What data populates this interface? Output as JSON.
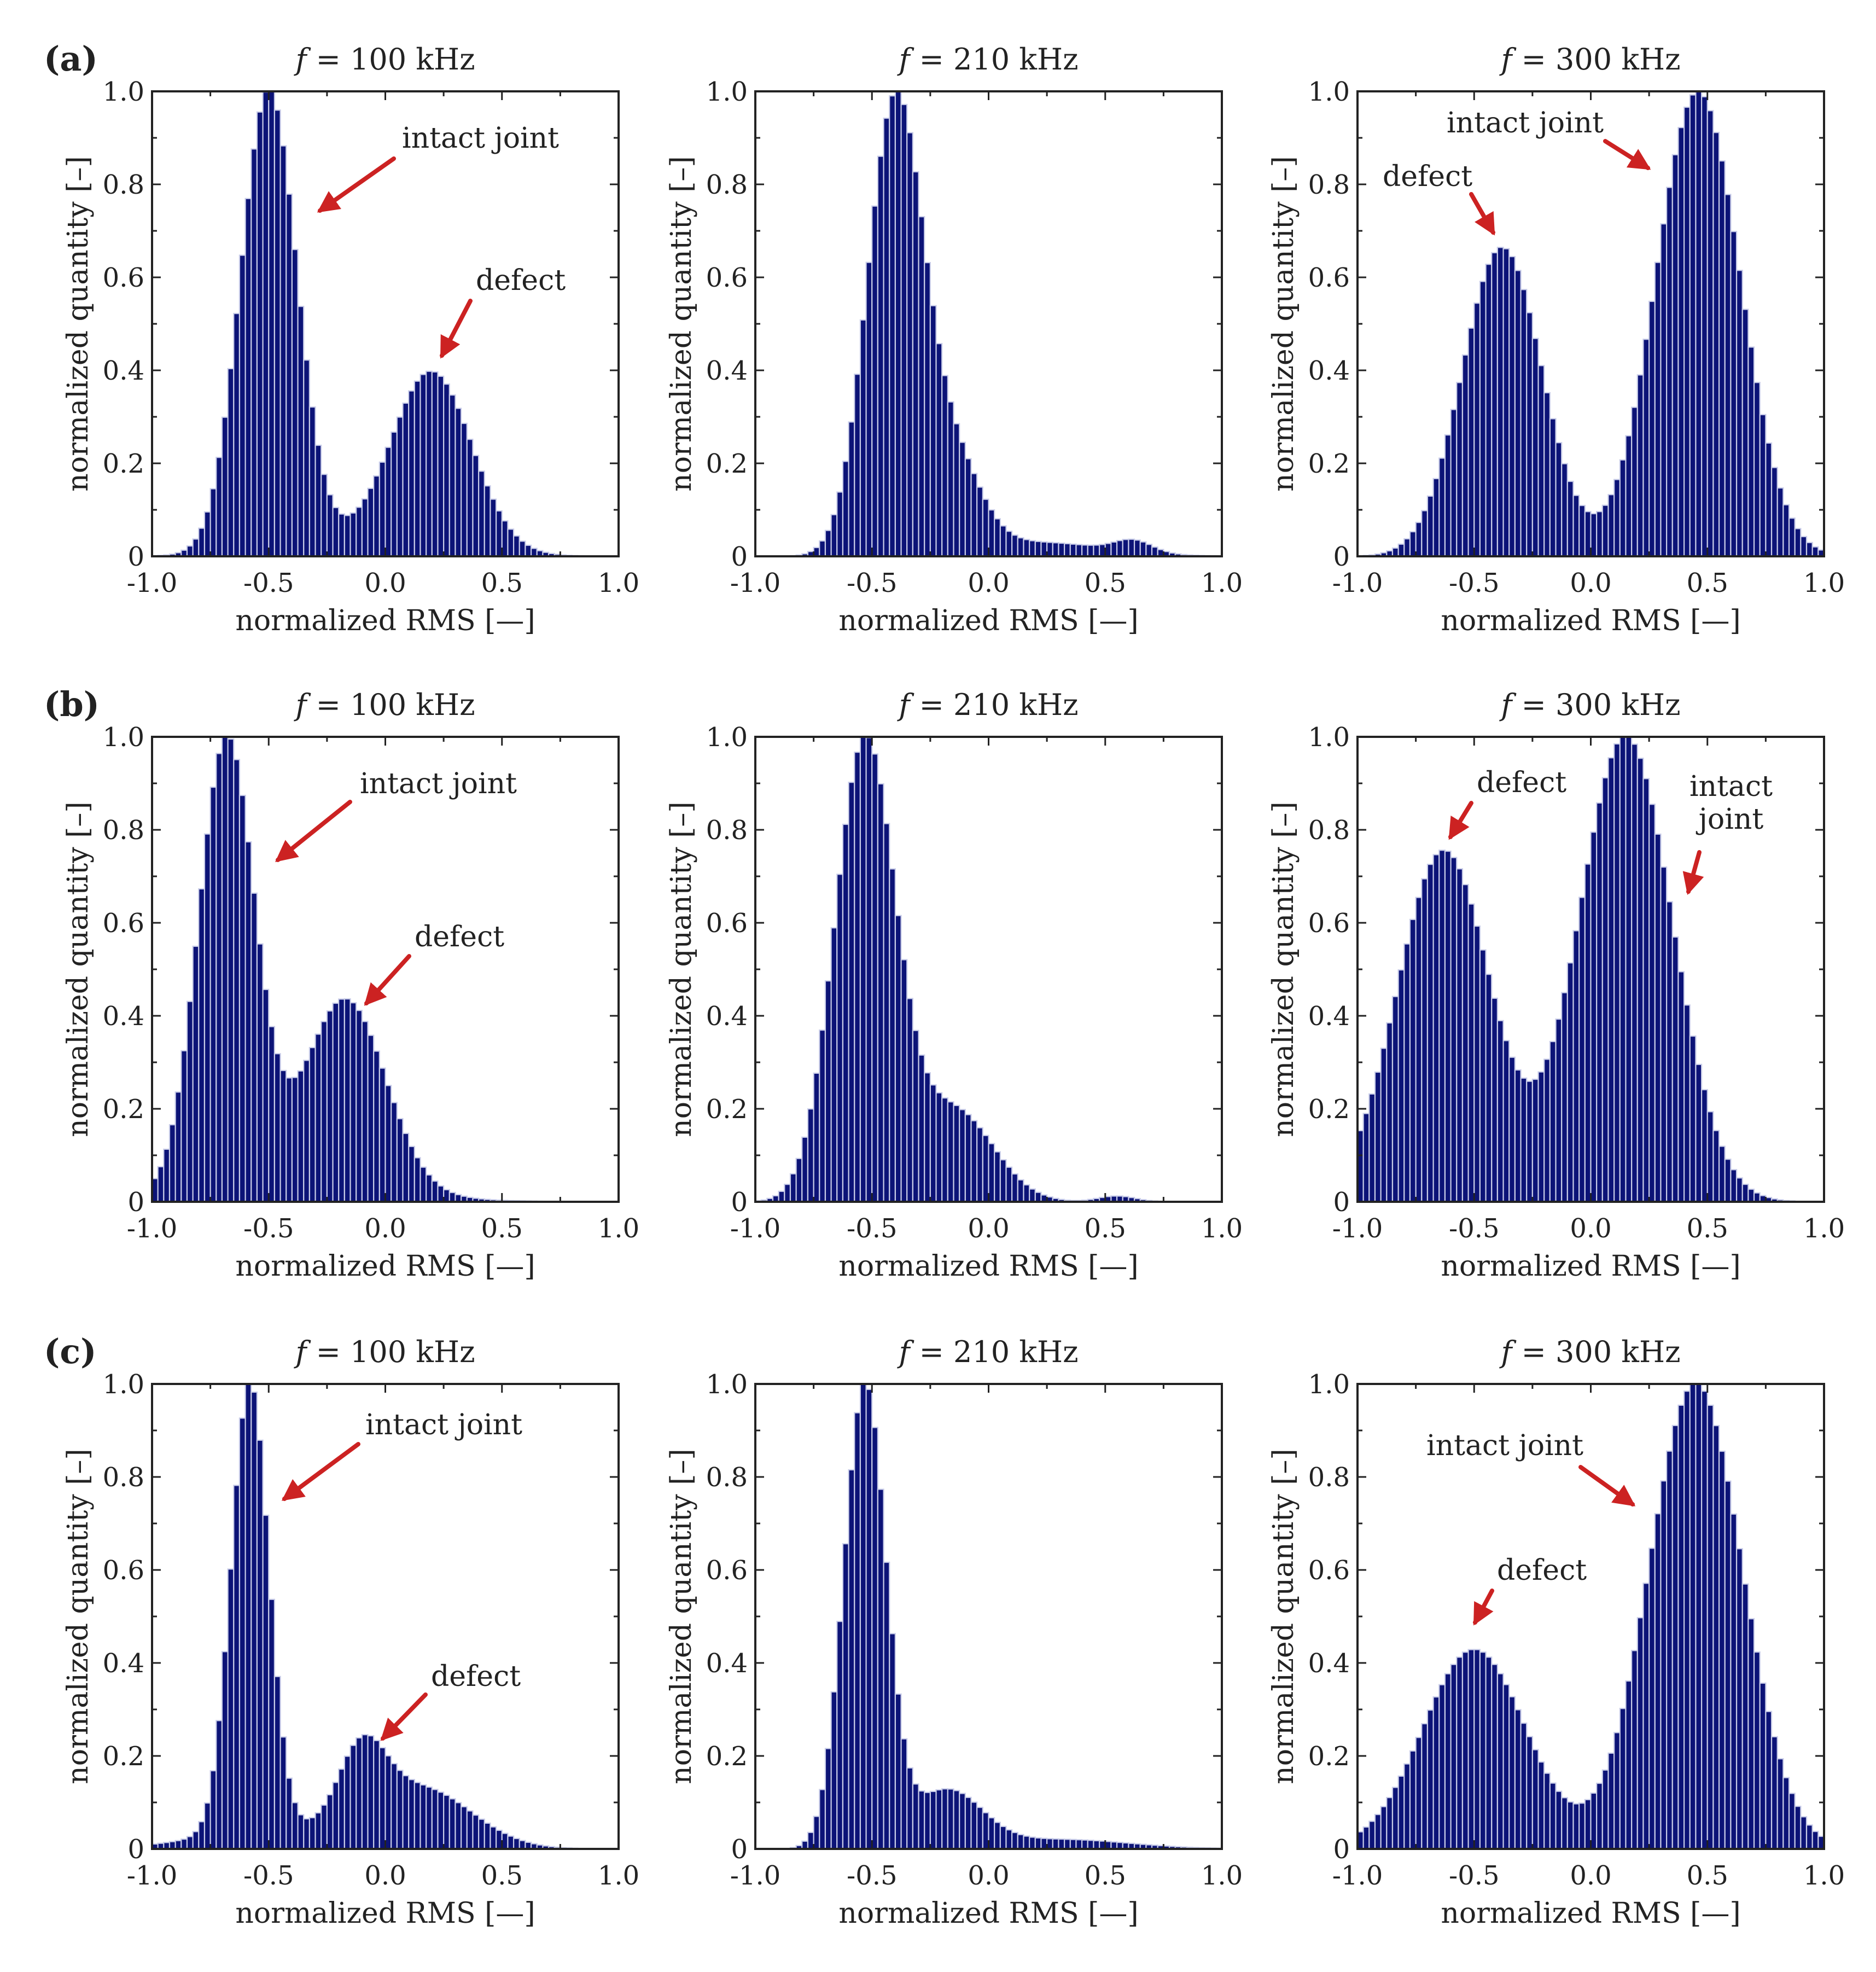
{
  "figure": {
    "x_axis_label": "normalized RMS [—]",
    "y_axis_label": "normalized quantity [–]",
    "x_tick_labels": [
      "-1.0",
      "-0.5",
      "0.0",
      "0.5",
      "1.0"
    ],
    "y_tick_labels": [
      "0",
      "0.2",
      "0.4",
      "0.6",
      "0.8",
      "1.0"
    ],
    "bar_color": "#0c1377",
    "bar_edge_color": "#c8cce8",
    "arrow_color": "#cc2222",
    "text_color": "#222222",
    "rows": [
      {
        "letter": "(a)"
      },
      {
        "letter": "(b)"
      },
      {
        "letter": "(c)"
      }
    ],
    "frequencies": [
      "100 kHz",
      "210 kHz",
      "300 kHz"
    ],
    "title_prefix": "f"
  },
  "chart_data": [
    {
      "type": "bar",
      "row": "a",
      "title": "f = 100 kHz",
      "xlabel": "normalized RMS [—]",
      "ylabel": "normalized quantity [–]",
      "xlim": [
        -1,
        1
      ],
      "ylim": [
        0,
        1
      ],
      "bins": 80,
      "bin_width": 0.025,
      "components": [
        {
          "mu": -0.5,
          "sigma": 0.12,
          "amp": 0.97
        },
        {
          "mu": 0.2,
          "sigma": 0.17,
          "amp": 0.37
        },
        {
          "mu": -0.1,
          "sigma": 0.35,
          "amp": 0.03
        }
      ],
      "annotations": [
        {
          "text": "intact joint",
          "x_data": -0.25,
          "y_data": 0.93
        },
        {
          "text": "defect",
          "x_data": 0.4,
          "y_data": 0.6
        }
      ]
    },
    {
      "type": "bar",
      "row": "a",
      "title": "f = 210 kHz",
      "xlabel": "normalized RMS [—]",
      "ylabel": "normalized quantity [–]",
      "xlim": [
        -1,
        1
      ],
      "ylim": [
        0,
        1
      ],
      "bins": 80,
      "bin_width": 0.025,
      "components": [
        {
          "mu": -0.4,
          "sigma": 0.12,
          "amp": 0.97
        },
        {
          "mu": -0.15,
          "sigma": 0.12,
          "amp": 0.18
        },
        {
          "mu": 0.62,
          "sigma": 0.08,
          "amp": 0.025
        },
        {
          "mu": 0.2,
          "sigma": 0.3,
          "amp": 0.03
        }
      ],
      "annotations": []
    },
    {
      "type": "bar",
      "row": "a",
      "title": "f = 300 kHz",
      "xlabel": "normalized RMS [—]",
      "ylabel": "normalized quantity [–]",
      "xlim": [
        -1,
        1
      ],
      "ylim": [
        0,
        1
      ],
      "bins": 80,
      "bin_width": 0.025,
      "components": [
        {
          "mu": -0.38,
          "sigma": 0.17,
          "amp": 0.655
        },
        {
          "mu": 0.46,
          "sigma": 0.18,
          "amp": 0.985
        }
      ],
      "annotations": [
        {
          "text": "intact joint",
          "x_data": -0.27,
          "y_data": 0.93
        },
        {
          "text": "defect",
          "x_data": -0.85,
          "y_data": 0.8
        }
      ]
    },
    {
      "type": "bar",
      "row": "b",
      "title": "f = 100 kHz",
      "xlabel": "normalized RMS [—]",
      "ylabel": "normalized quantity [–]",
      "xlim": [
        -1,
        1
      ],
      "ylim": [
        0,
        1
      ],
      "bins": 80,
      "bin_width": 0.025,
      "components": [
        {
          "mu": -0.68,
          "sigma": 0.12,
          "amp": 0.96
        },
        {
          "mu": -0.17,
          "sigma": 0.17,
          "amp": 0.4
        },
        {
          "mu": -0.4,
          "sigma": 0.4,
          "amp": 0.04
        }
      ],
      "annotations": [
        {
          "text": "intact joint",
          "x_data": -0.45,
          "y_data": 0.88
        },
        {
          "text": "defect",
          "x_data": -0.08,
          "y_data": 0.56
        }
      ]
    },
    {
      "type": "bar",
      "row": "b",
      "title": "f = 210 kHz",
      "xlabel": "normalized RMS [—]",
      "ylabel": "normalized quantity [–]",
      "xlim": [
        -1,
        1
      ],
      "ylim": [
        0,
        1
      ],
      "bins": 80,
      "bin_width": 0.025,
      "components": [
        {
          "mu": -0.53,
          "sigma": 0.13,
          "amp": 0.95
        },
        {
          "mu": -0.15,
          "sigma": 0.17,
          "amp": 0.19
        },
        {
          "mu": 0.55,
          "sigma": 0.08,
          "amp": 0.012
        }
      ],
      "annotations": []
    },
    {
      "type": "bar",
      "row": "b",
      "title": "f = 300 kHz",
      "xlabel": "normalized RMS [—]",
      "ylabel": "normalized quantity [–]",
      "xlim": [
        -1,
        1
      ],
      "ylim": [
        0,
        1
      ],
      "bins": 80,
      "bin_width": 0.025,
      "components": [
        {
          "mu": -0.63,
          "sigma": 0.2,
          "amp": 0.74
        },
        {
          "mu": 0.15,
          "sigma": 0.2,
          "amp": 0.98
        }
      ],
      "annotations": [
        {
          "text": "defect",
          "x_data": -0.6,
          "y_data": 0.9
        },
        {
          "text": "intact joint",
          "x_data": 0.6,
          "y_data": 0.9
        }
      ]
    },
    {
      "type": "bar",
      "row": "c",
      "title": "f = 100 kHz",
      "xlabel": "normalized RMS [—]",
      "ylabel": "normalized quantity [–]",
      "xlim": [
        -1,
        1
      ],
      "ylim": [
        0,
        1
      ],
      "bins": 80,
      "bin_width": 0.025,
      "components": [
        {
          "mu": -0.58,
          "sigma": 0.08,
          "amp": 0.97
        },
        {
          "mu": -0.1,
          "sigma": 0.1,
          "amp": 0.16
        },
        {
          "mu": 0.15,
          "sigma": 0.22,
          "amp": 0.13
        },
        {
          "mu": -0.5,
          "sigma": 0.3,
          "amp": 0.04
        }
      ],
      "annotations": [
        {
          "text": "intact joint",
          "x_data": -0.35,
          "y_data": 0.9
        },
        {
          "text": "defect",
          "x_data": 0.1,
          "y_data": 0.38
        }
      ]
    },
    {
      "type": "bar",
      "row": "c",
      "title": "f = 210 kHz",
      "xlabel": "normalized RMS [—]",
      "ylabel": "normalized quantity [–]",
      "xlim": [
        -1,
        1
      ],
      "ylim": [
        0,
        1
      ],
      "bins": 80,
      "bin_width": 0.025,
      "components": [
        {
          "mu": -0.53,
          "sigma": 0.09,
          "amp": 0.97
        },
        {
          "mu": -0.18,
          "sigma": 0.15,
          "amp": 0.12
        },
        {
          "mu": 0.3,
          "sigma": 0.3,
          "amp": 0.02
        }
      ],
      "annotations": []
    },
    {
      "type": "bar",
      "row": "c",
      "title": "f = 300 kHz",
      "xlabel": "normalized RMS [—]",
      "ylabel": "normalized quantity [–]",
      "xlim": [
        -1,
        1
      ],
      "ylim": [
        0,
        1
      ],
      "bins": 80,
      "bin_width": 0.025,
      "components": [
        {
          "mu": -0.5,
          "sigma": 0.22,
          "amp": 0.42
        },
        {
          "mu": 0.45,
          "sigma": 0.2,
          "amp": 0.98
        }
      ],
      "annotations": [
        {
          "text": "intact joint",
          "x_data": -0.5,
          "y_data": 0.86
        },
        {
          "text": "defect",
          "x_data": -0.5,
          "y_data": 0.6
        }
      ]
    }
  ]
}
